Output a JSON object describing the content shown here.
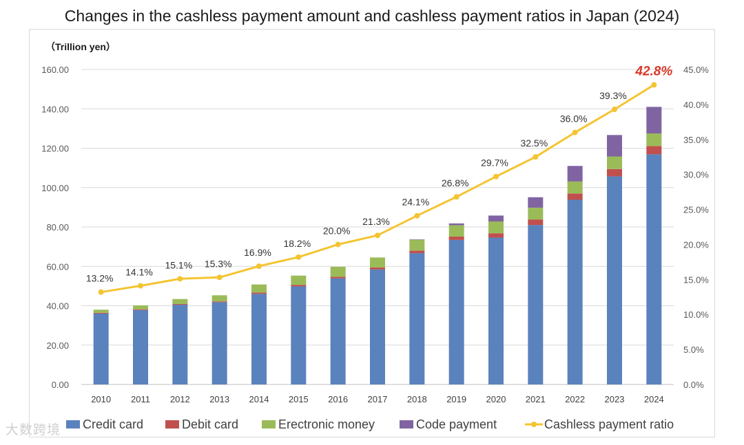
{
  "title": "Changes in the cashless payment amount and cashless payment ratios in Japan (2024)",
  "watermark": "大数跨境",
  "chart_data": {
    "type": "bar",
    "stacked": true,
    "unit_label": "（Trillion yen）",
    "categories": [
      "2010",
      "2011",
      "2012",
      "2013",
      "2014",
      "2015",
      "2016",
      "2017",
      "2018",
      "2019",
      "2020",
      "2021",
      "2022",
      "2023",
      "2024"
    ],
    "series": [
      {
        "name": "Credit card",
        "color": "#5a82bd",
        "values": [
          36.0,
          37.8,
          40.5,
          41.8,
          46.0,
          49.8,
          53.9,
          58.4,
          66.7,
          73.4,
          74.6,
          81.0,
          93.8,
          105.7,
          116.9
        ]
      },
      {
        "name": "Debit card",
        "color": "#c0504d",
        "values": [
          0.4,
          0.4,
          0.4,
          0.4,
          0.7,
          0.8,
          0.8,
          1.0,
          1.3,
          1.7,
          2.2,
          2.8,
          3.2,
          3.7,
          4.2
        ]
      },
      {
        "name": "Erectronic money",
        "color": "#9bbb59",
        "values": [
          1.6,
          2.0,
          2.5,
          3.1,
          4.1,
          4.7,
          5.1,
          5.1,
          5.5,
          5.8,
          6.0,
          6.0,
          6.1,
          6.4,
          6.4
        ]
      },
      {
        "name": "Code payment",
        "color": "#8064a2",
        "values": [
          0,
          0,
          0,
          0,
          0,
          0,
          0,
          0,
          0.2,
          0.9,
          3.0,
          5.3,
          7.9,
          10.9,
          13.5
        ]
      }
    ],
    "line_series": {
      "name": "Cashless payment ratio",
      "color": "#f4c431",
      "values": [
        13.2,
        14.1,
        15.1,
        15.3,
        16.9,
        18.2,
        20.0,
        21.3,
        24.1,
        26.8,
        29.7,
        32.5,
        36.0,
        39.3,
        42.8
      ],
      "labels": [
        "13.2%",
        "14.1%",
        "15.1%",
        "15.3%",
        "16.9%",
        "18.2%",
        "20.0%",
        "21.3%",
        "24.1%",
        "26.8%",
        "29.7%",
        "32.5%",
        "36.0%",
        "39.3%",
        "42.8%"
      ],
      "highlight_color": "#d93a2b"
    },
    "y_left": {
      "min": 0,
      "max": 160,
      "ticks": [
        "0.00",
        "20.00",
        "40.00",
        "60.00",
        "80.00",
        "100.00",
        "120.00",
        "140.00",
        "160.00"
      ]
    },
    "y_right": {
      "min": 0,
      "max": 45,
      "ticks": [
        "0.0%",
        "5.0%",
        "10.0%",
        "15.0%",
        "20.0%",
        "25.0%",
        "30.0%",
        "35.0%",
        "40.0%",
        "45.0%"
      ]
    },
    "grid": true,
    "legend": {
      "position": "bottom",
      "items": [
        "Credit card",
        "Debit card",
        "Erectronic money",
        "Code payment",
        "Cashless payment ratio"
      ]
    }
  }
}
